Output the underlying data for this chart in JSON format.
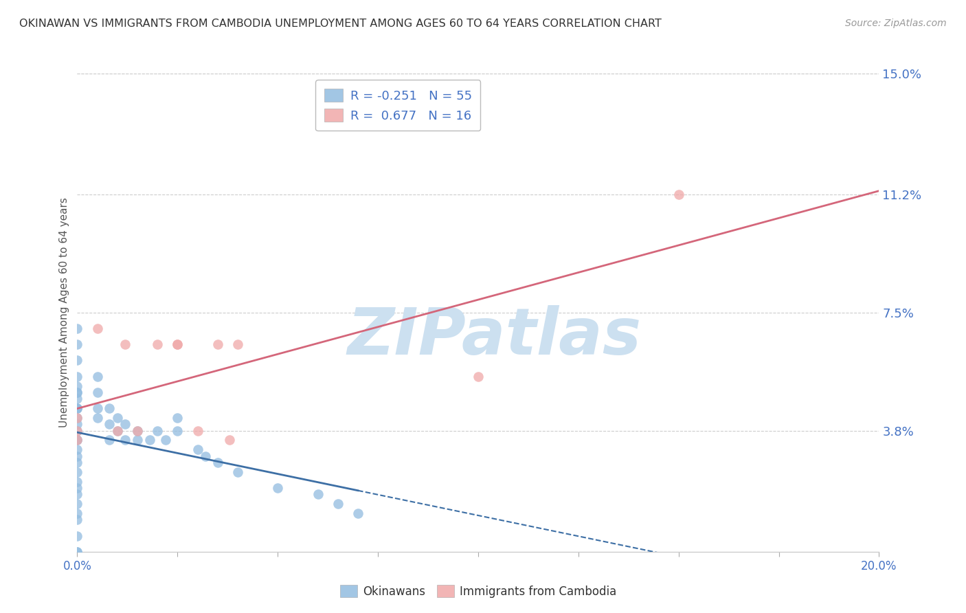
{
  "title": "OKINAWAN VS IMMIGRANTS FROM CAMBODIA UNEMPLOYMENT AMONG AGES 60 TO 64 YEARS CORRELATION CHART",
  "source": "Source: ZipAtlas.com",
  "ylabel": "Unemployment Among Ages 60 to 64 years",
  "xlim": [
    0.0,
    0.2
  ],
  "ylim": [
    0.0,
    0.15
  ],
  "xticks": [
    0.0,
    0.025,
    0.05,
    0.075,
    0.1,
    0.125,
    0.15,
    0.175,
    0.2
  ],
  "xtick_labels_show": {
    "0.0": "0.0%",
    "0.20": "20.0%"
  },
  "yticks": [
    0.0,
    0.038,
    0.075,
    0.112,
    0.15
  ],
  "ytick_labels": [
    "",
    "3.8%",
    "7.5%",
    "11.2%",
    "15.0%"
  ],
  "okinawan_R": -0.251,
  "okinawan_N": 55,
  "cambodia_R": 0.677,
  "cambodia_N": 16,
  "okinawan_color": "#92bce0",
  "cambodia_color": "#f0a8a8",
  "okinawan_line_color": "#3d6fa5",
  "cambodia_line_color": "#d4667a",
  "watermark_text": "ZIPatlas",
  "watermark_color": "#cce0f0",
  "legend_label_1": "Okinawans",
  "legend_label_2": "Immigrants from Cambodia",
  "okinawan_x": [
    0.0,
    0.0,
    0.0,
    0.0,
    0.0,
    0.0,
    0.0,
    0.0,
    0.0,
    0.0,
    0.0,
    0.0,
    0.0,
    0.0,
    0.0,
    0.0,
    0.0,
    0.0,
    0.0,
    0.0,
    0.0,
    0.0,
    0.0,
    0.0,
    0.0,
    0.0,
    0.0,
    0.0,
    0.0,
    0.005,
    0.005,
    0.005,
    0.005,
    0.008,
    0.008,
    0.008,
    0.01,
    0.01,
    0.012,
    0.012,
    0.015,
    0.015,
    0.018,
    0.02,
    0.022,
    0.025,
    0.025,
    0.03,
    0.032,
    0.035,
    0.04,
    0.05,
    0.06,
    0.065,
    0.07
  ],
  "okinawan_y": [
    0.0,
    0.0,
    0.005,
    0.01,
    0.012,
    0.015,
    0.018,
    0.02,
    0.022,
    0.025,
    0.028,
    0.03,
    0.032,
    0.035,
    0.035,
    0.038,
    0.04,
    0.042,
    0.045,
    0.045,
    0.045,
    0.048,
    0.05,
    0.05,
    0.052,
    0.055,
    0.06,
    0.065,
    0.07,
    0.042,
    0.045,
    0.05,
    0.055,
    0.035,
    0.04,
    0.045,
    0.038,
    0.042,
    0.035,
    0.04,
    0.035,
    0.038,
    0.035,
    0.038,
    0.035,
    0.038,
    0.042,
    0.032,
    0.03,
    0.028,
    0.025,
    0.02,
    0.018,
    0.015,
    0.012
  ],
  "cambodia_x": [
    0.0,
    0.0,
    0.0,
    0.005,
    0.01,
    0.012,
    0.015,
    0.02,
    0.025,
    0.025,
    0.03,
    0.035,
    0.038,
    0.04,
    0.1,
    0.15
  ],
  "cambodia_y": [
    0.035,
    0.038,
    0.042,
    0.07,
    0.038,
    0.065,
    0.038,
    0.065,
    0.065,
    0.065,
    0.038,
    0.065,
    0.035,
    0.065,
    0.055,
    0.112
  ]
}
